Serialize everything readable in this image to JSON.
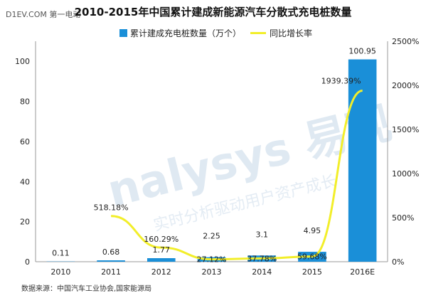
{
  "site_tag": "D1EV.COM 第一电动",
  "title": "2010-2015年中国累计建成新能源汽车分散式充电桩数量",
  "legend": {
    "bar_label": "累计建成充电桩数量（万个）",
    "line_label": "同比增长率"
  },
  "source": "数据来源：中国汽车工业协会,国家能源局",
  "watermark": {
    "brand": "nalysys 易观",
    "slogan": "实时分析驱动用户资产成长"
  },
  "colors": {
    "bar": "#1a8fd8",
    "line": "#f2ee2a",
    "axis": "#999999"
  },
  "chart_data": {
    "type": "bar+line",
    "title": "2010-2015年中国累计建成新能源汽车分散式充电桩数量",
    "categories": [
      "2010",
      "2011",
      "2012",
      "2013",
      "2014",
      "2015",
      "2016E"
    ],
    "series": [
      {
        "name": "累计建成充电桩数量（万个）",
        "type": "bar",
        "axis": "left",
        "values": [
          0.11,
          0.68,
          1.77,
          2.25,
          3.1,
          4.95,
          100.95
        ],
        "labels": [
          "0.11",
          "0.68",
          "1.77",
          "2.25",
          "3.1",
          "4.95",
          "100.95"
        ]
      },
      {
        "name": "同比增长率",
        "type": "line",
        "axis": "right",
        "values": [
          null,
          518.18,
          160.29,
          27.12,
          37.78,
          59.68,
          1939.39
        ],
        "labels": [
          "",
          "518.18%",
          "160.29%",
          "27.12%",
          "37.78%",
          "59.68%",
          "1939.39%"
        ]
      }
    ],
    "y_left": {
      "ticks": [
        "0",
        "20",
        "40",
        "60",
        "80",
        "100"
      ],
      "ylim": [
        0,
        110
      ]
    },
    "y_right": {
      "ticks": [
        "0%",
        "500%",
        "1000%",
        "1500%",
        "2000%",
        "2500%"
      ],
      "ylim": [
        0,
        2500
      ]
    },
    "grid": false,
    "legend_position": "top"
  }
}
